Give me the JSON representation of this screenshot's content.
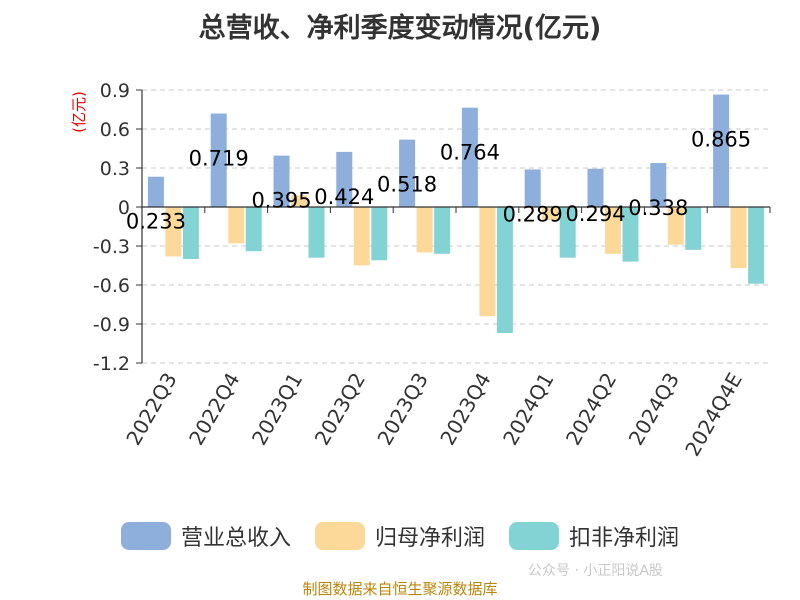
{
  "chart_data": {
    "type": "bar",
    "title": "总营收、净利季度变动情况(亿元)",
    "ylabel": "(亿元)",
    "xlabel": "",
    "ylim": [
      -1.2,
      0.9
    ],
    "yticks": [
      "0.9",
      "0.6",
      "0.3",
      "0",
      "-0.3",
      "-0.6",
      "-0.9",
      "-1.2"
    ],
    "ytick_values": [
      0.9,
      0.6,
      0.3,
      0,
      -0.3,
      -0.6,
      -0.9,
      -1.2
    ],
    "grid": true,
    "legend_position": "bottom",
    "categories": [
      "2022Q3",
      "2022Q4",
      "2023Q1",
      "2023Q2",
      "2023Q3",
      "2023Q4",
      "2024Q1",
      "2024Q2",
      "2024Q3",
      "2024Q4E"
    ],
    "series": [
      {
        "name": "营业总收入",
        "color": "#8eaedb",
        "values": [
          0.233,
          0.719,
          0.395,
          0.424,
          0.518,
          0.764,
          0.289,
          0.294,
          0.338,
          0.865
        ],
        "labels": [
          "0.233",
          "0.719",
          "0.395",
          "0.424",
          "0.518",
          "0.764",
          "0.289",
          "0.294",
          "0.338",
          "0.865"
        ]
      },
      {
        "name": "归母净利润",
        "color": "#fcd899",
        "values": [
          -0.38,
          -0.28,
          0.09,
          -0.45,
          -0.35,
          -0.84,
          -0.1,
          -0.36,
          -0.29,
          -0.47
        ]
      },
      {
        "name": "扣非净利润",
        "color": "#83d3d5",
        "values": [
          -0.4,
          -0.34,
          -0.39,
          -0.41,
          -0.36,
          -0.97,
          -0.39,
          -0.42,
          -0.33,
          -0.59
        ]
      }
    ]
  },
  "source": "制图数据来自恒生聚源数据库",
  "watermark": "公众号 · 小正阳说A股"
}
